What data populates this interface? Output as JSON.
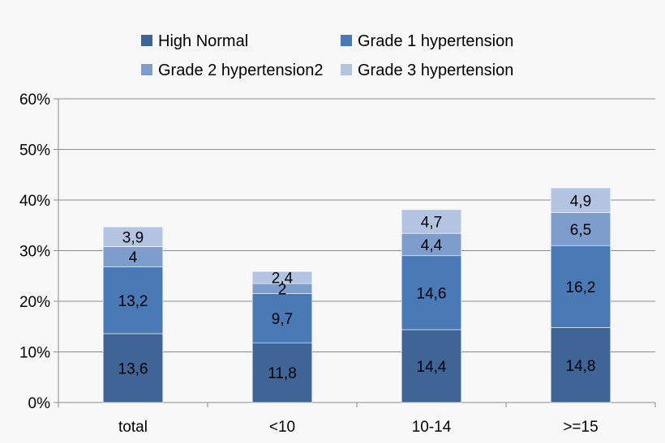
{
  "chart_data": {
    "type": "bar",
    "stacked": true,
    "categories": [
      "total",
      "<10",
      "10-14",
      ">=15"
    ],
    "series": [
      {
        "name": "High Normal",
        "color": "#3f6597",
        "values": [
          13.6,
          11.8,
          14.4,
          14.8
        ],
        "labels": [
          "13,6",
          "11,8",
          "14,4",
          "14,8"
        ]
      },
      {
        "name": "Grade 1 hypertension",
        "color": "#4a7ab5",
        "values": [
          13.2,
          9.7,
          14.6,
          16.2
        ],
        "labels": [
          "13,2",
          "9,7",
          "14,6",
          "16,2"
        ]
      },
      {
        "name": "Grade 2 hypertension2",
        "color": "#7d9dcc",
        "values": [
          4,
          2,
          4.4,
          6.5
        ],
        "labels": [
          "4",
          "2",
          "4,4",
          "6,5"
        ]
      },
      {
        "name": "Grade 3 hypertension",
        "color": "#b3c4e2",
        "values": [
          3.9,
          2.4,
          4.7,
          4.9
        ],
        "labels": [
          "3,9",
          "2,4",
          "4,7",
          "4,9"
        ]
      }
    ],
    "ylim": [
      0,
      60
    ],
    "yticks": [
      "0%",
      "10%",
      "20%",
      "30%",
      "40%",
      "50%",
      "60%"
    ],
    "grid": true,
    "legend_position": "top"
  }
}
